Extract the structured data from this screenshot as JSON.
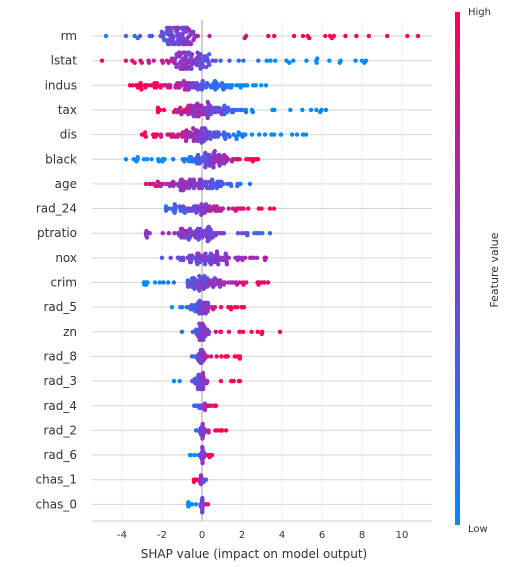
{
  "chart_data": {
    "type": "scatter",
    "subtype": "shap-beeswarm",
    "title": "",
    "xlabel": "SHAP value (impact on model output)",
    "ylabel": "",
    "xlim": [
      -5.5,
      11.5
    ],
    "xticks": [
      -4,
      -2,
      0,
      2,
      4,
      6,
      8,
      10
    ],
    "grid": true,
    "zero_line": true,
    "colorbar": {
      "title": "Feature value",
      "high_label": "High",
      "low_label": "Low",
      "low_color": "#008bfb",
      "high_color": "#ff0052",
      "placement": "right"
    },
    "features": [
      {
        "name": "rm",
        "range": [
          -4.8,
          10.8
        ],
        "core": [
          -2.0,
          -0.2
        ],
        "bias": 1.0,
        "n": 110
      },
      {
        "name": "lstat",
        "range": [
          -5.0,
          8.2
        ],
        "core": [
          -1.8,
          0.8
        ],
        "bias": -1.0,
        "n": 110
      },
      {
        "name": "indus",
        "range": [
          -3.6,
          3.2
        ],
        "core": [
          -2.6,
          1.8
        ],
        "bias": -1.0,
        "n": 110
      },
      {
        "name": "tax",
        "range": [
          -2.2,
          6.2
        ],
        "core": [
          -1.6,
          2.2
        ],
        "bias": -1.0,
        "n": 110
      },
      {
        "name": "dis",
        "range": [
          -3.0,
          5.2
        ],
        "core": [
          -1.8,
          1.8
        ],
        "bias": -1.0,
        "n": 110
      },
      {
        "name": "black",
        "range": [
          -3.8,
          2.8
        ],
        "core": [
          -0.6,
          1.6
        ],
        "bias": 1.0,
        "n": 110
      },
      {
        "name": "age",
        "range": [
          -2.8,
          2.4
        ],
        "core": [
          -1.6,
          1.0
        ],
        "bias": -0.4,
        "n": 110
      },
      {
        "name": "rad_24",
        "range": [
          -1.8,
          3.6
        ],
        "core": [
          -1.6,
          1.2
        ],
        "bias": 0.6,
        "n": 90
      },
      {
        "name": "ptratio",
        "range": [
          -2.8,
          3.4
        ],
        "core": [
          -1.2,
          0.8
        ],
        "bias": -0.2,
        "n": 100
      },
      {
        "name": "nox",
        "range": [
          -2.0,
          3.2
        ],
        "core": [
          -1.0,
          1.6
        ],
        "bias": 0.2,
        "n": 100
      },
      {
        "name": "crim",
        "range": [
          -2.9,
          3.3
        ],
        "core": [
          -0.8,
          1.2
        ],
        "bias": 0.6,
        "n": 100
      },
      {
        "name": "rad_5",
        "range": [
          -1.5,
          2.1
        ],
        "core": [
          -0.4,
          0.4
        ],
        "bias": 0.9,
        "n": 80
      },
      {
        "name": "zn",
        "range": [
          -1.0,
          3.9
        ],
        "core": [
          -0.3,
          0.3
        ],
        "bias": 0.9,
        "n": 60
      },
      {
        "name": "rad_8",
        "range": [
          -0.5,
          1.9
        ],
        "core": [
          -0.25,
          0.15
        ],
        "bias": 0.9,
        "n": 55
      },
      {
        "name": "rad_3",
        "range": [
          -1.4,
          1.9
        ],
        "core": [
          -0.3,
          0.2
        ],
        "bias": 0.9,
        "n": 55
      },
      {
        "name": "rad_4",
        "range": [
          -0.4,
          0.7
        ],
        "core": [
          -0.2,
          0.2
        ],
        "bias": 0.5,
        "n": 45
      },
      {
        "name": "rad_2",
        "range": [
          -0.3,
          1.2
        ],
        "core": [
          -0.1,
          0.1
        ],
        "bias": 0.9,
        "n": 45
      },
      {
        "name": "rad_6",
        "range": [
          -0.6,
          0.5
        ],
        "core": [
          -0.1,
          0.1
        ],
        "bias": 0.8,
        "n": 40
      },
      {
        "name": "chas_1",
        "range": [
          -0.4,
          0.2
        ],
        "core": [
          -0.1,
          0.1
        ],
        "bias": -0.7,
        "n": 35
      },
      {
        "name": "chas_0",
        "range": [
          -0.7,
          0.3
        ],
        "core": [
          -0.05,
          0.05
        ],
        "bias": 0.9,
        "n": 35
      }
    ]
  }
}
